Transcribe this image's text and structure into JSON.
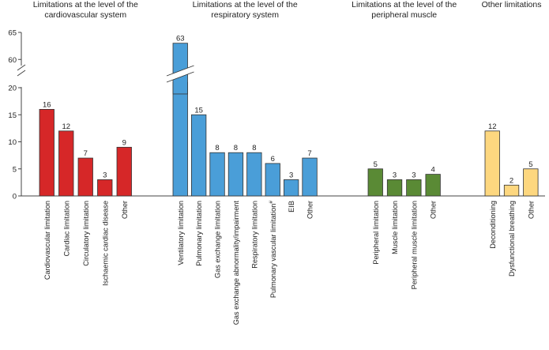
{
  "chart_data": {
    "type": "bar",
    "title": "",
    "xlabel": "",
    "ylabel": "",
    "ylim": [
      0,
      65
    ],
    "axis_break": [
      21,
      58
    ],
    "y_ticks": [
      0,
      5,
      10,
      15,
      20,
      60,
      65
    ],
    "groups": [
      {
        "title_lines": [
          "Limitations at the level of the",
          "cardiovascular system"
        ],
        "color": "#d62728",
        "bars": [
          {
            "category": "Cardiovascular limitation",
            "value": 16
          },
          {
            "category": "Cardiac limitation",
            "value": 12
          },
          {
            "category": "Circulatory limitation",
            "value": 7
          },
          {
            "category": "Ischaemic cardiac disease",
            "value": 3
          },
          {
            "category": "Other",
            "value": 9
          }
        ]
      },
      {
        "title_lines": [
          "Limitations at the level of the",
          "respiratory system"
        ],
        "color": "#4a9ed8",
        "bars": [
          {
            "category": "Ventilatory limitation",
            "value": 63
          },
          {
            "category": "Pulmonary limitation",
            "value": 15
          },
          {
            "category": "Gas exchange limitation",
            "value": 8
          },
          {
            "category": "Gas exchange abnormality/impairment",
            "value": 8
          },
          {
            "category": "Respiratory limitation",
            "value": 8
          },
          {
            "category": "Pulmonary vascular limitation#",
            "value": 6
          },
          {
            "category": "EIB",
            "value": 3
          },
          {
            "category": "Other",
            "value": 7
          }
        ]
      },
      {
        "title_lines": [
          "Limitations at the level of the",
          "peripheral muscle"
        ],
        "color": "#5a8a35",
        "bars": [
          {
            "category": "Peripheral limitation",
            "value": 5
          },
          {
            "category": "Muscle limitation",
            "value": 3
          },
          {
            "category": "Peripheral muscle limitation",
            "value": 3
          },
          {
            "category": "Other",
            "value": 4
          }
        ]
      },
      {
        "title_lines": [
          "Other limitations"
        ],
        "color": "#fdd77f",
        "bars": [
          {
            "category": "Deconditioning",
            "value": 12
          },
          {
            "category": "Dysfunctional breathing",
            "value": 2
          },
          {
            "category": "Other",
            "value": 5
          }
        ]
      }
    ]
  }
}
